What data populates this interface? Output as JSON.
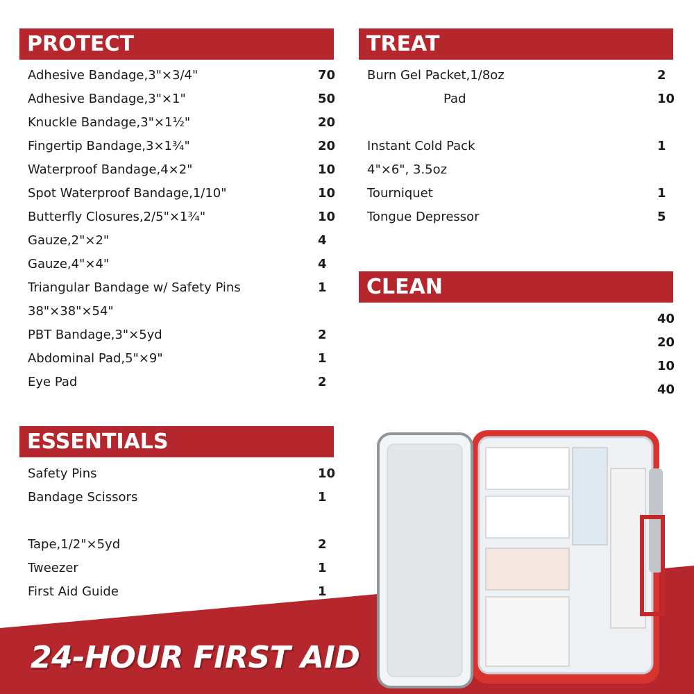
{
  "colors": {
    "accent": "#b5272d",
    "text": "#1a1a1a",
    "background": "#ffffff"
  },
  "protect": {
    "title": "PROTECT",
    "items": [
      {
        "label": "Adhesive Bandage,3\"×3/4\"",
        "count": "70"
      },
      {
        "label": "Adhesive Bandage,3\"×1\"",
        "count": "50"
      },
      {
        "label": "Knuckle Bandage,3\"×1½\"",
        "count": "20"
      },
      {
        "label": "Fingertip Bandage,3×1¾\"",
        "count": "20"
      },
      {
        "label": "Waterproof Bandage,4×2\"",
        "count": "10"
      },
      {
        "label": "Spot Waterproof Bandage,1/10\"",
        "count": "10"
      },
      {
        "label": "Butterfly Closures,2/5\"×1¾\"",
        "count": "10"
      },
      {
        "label": "Gauze,2\"×2\"",
        "count": "4"
      },
      {
        "label": "Gauze,4\"×4\"",
        "count": "4"
      },
      {
        "label": "Triangular Bandage w/ Safety Pins",
        "count": "1"
      },
      {
        "label": "38\"×38\"×54\"",
        "count": ""
      },
      {
        "label": "PBT Bandage,3\"×5yd",
        "count": "2"
      },
      {
        "label": "Abdominal Pad,5\"×9\"",
        "count": "1"
      },
      {
        "label": "Eye Pad",
        "count": "2"
      }
    ]
  },
  "treat": {
    "title": "TREAT",
    "items": [
      {
        "label": "Burn Gel Packet,1/8oz",
        "count": "2"
      },
      {
        "label": "Pad",
        "count": "10"
      },
      {
        "label": "",
        "count": ""
      },
      {
        "label": "Instant Cold Pack",
        "count": "1"
      },
      {
        "label": "4\"×6\", 3.5oz",
        "count": ""
      },
      {
        "label": "Tourniquet",
        "count": "1"
      },
      {
        "label": "Tongue Depressor",
        "count": "5"
      }
    ]
  },
  "clean": {
    "title": "CLEAN",
    "items": [
      {
        "label": "",
        "count": "40"
      },
      {
        "label": "",
        "count": "20"
      },
      {
        "label": "",
        "count": "10"
      },
      {
        "label": "",
        "count": "40"
      }
    ]
  },
  "essentials": {
    "title": "ESSENTIALS",
    "items": [
      {
        "label": "Safety Pins",
        "count": "10"
      },
      {
        "label": "Bandage Scissors",
        "count": "1"
      },
      {
        "label": "",
        "count": ""
      },
      {
        "label": "Tape,1/2\"×5yd",
        "count": "2"
      },
      {
        "label": "Tweezer",
        "count": "1"
      },
      {
        "label": "First Aid Guide",
        "count": "1"
      }
    ]
  },
  "slogan": "24-HOUR FIRST AID"
}
